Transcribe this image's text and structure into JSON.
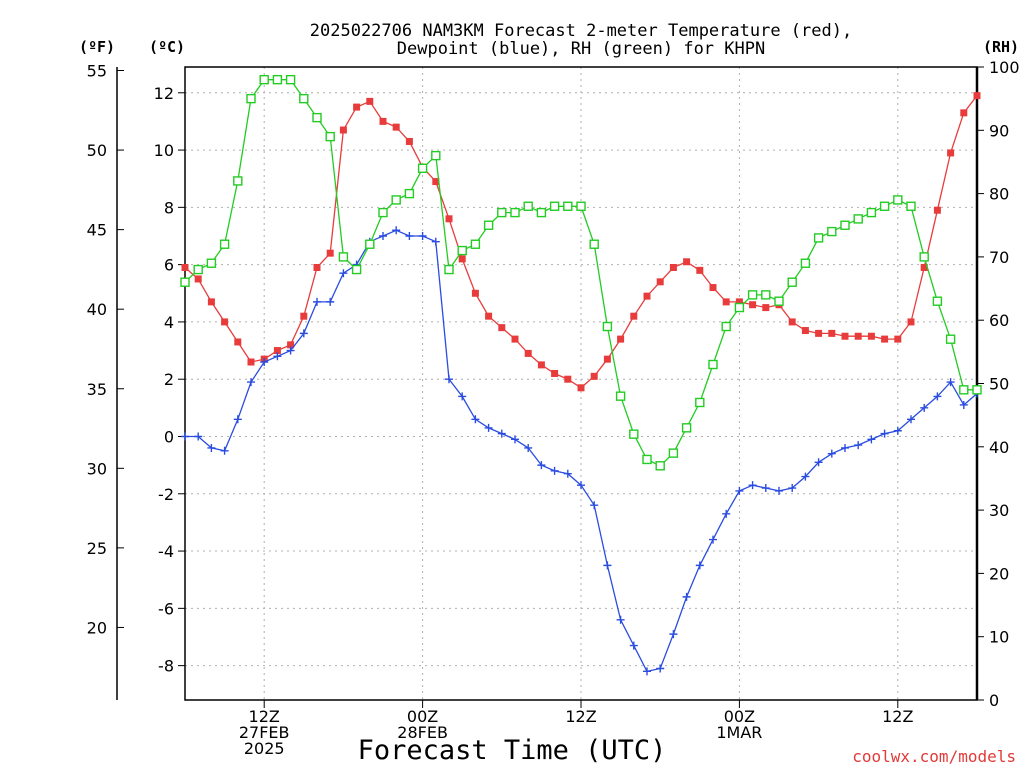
{
  "chart_data": {
    "type": "line",
    "title_lines": [
      "2025022706 NAM3KM Forecast 2-meter Temperature (red),",
      "Dewpoint (blue), RH (green) for KHPN"
    ],
    "xlabel": "Forecast Time (UTC)",
    "credit": "coolwx.com/models",
    "units": {
      "f": "(ºF)",
      "c": "(ºC)",
      "rh": "(RH)"
    },
    "x_start": "2025-02-27 06Z",
    "x_step_hours": 1,
    "x_range_hours": [
      0,
      60
    ],
    "x_ticks": [
      {
        "h": 6,
        "lines": [
          "12Z",
          "27FEB",
          "2025"
        ]
      },
      {
        "h": 18,
        "lines": [
          "00Z",
          "28FEB"
        ]
      },
      {
        "h": 30,
        "lines": [
          "12Z"
        ]
      },
      {
        "h": 42,
        "lines": [
          "00Z",
          "1MAR"
        ]
      },
      {
        "h": 54,
        "lines": [
          "12Z"
        ]
      }
    ],
    "ylim_c": [
      -9.2,
      12.9
    ],
    "ylim_rh": [
      0,
      100
    ],
    "y_ticks_c": [
      -8,
      -6,
      -4,
      -2,
      0,
      2,
      4,
      6,
      8,
      10,
      12
    ],
    "y_ticks_f": [
      20,
      25,
      30,
      35,
      40,
      45,
      50,
      55
    ],
    "y_ticks_rh": [
      0,
      10,
      20,
      30,
      40,
      50,
      60,
      70,
      80,
      90,
      100
    ],
    "grid": true,
    "series": [
      {
        "name": "2-meter Temperature",
        "axis": "c",
        "color": "#e83c3c",
        "marker": "filled-square",
        "values": [
          5.9,
          5.5,
          4.7,
          4.0,
          3.3,
          2.6,
          2.7,
          3.0,
          3.2,
          4.2,
          5.9,
          6.4,
          10.7,
          11.5,
          11.7,
          11.0,
          10.8,
          10.3,
          9.4,
          8.9,
          7.6,
          6.2,
          5.0,
          4.2,
          3.8,
          3.4,
          2.9,
          2.5,
          2.2,
          2.0,
          1.7,
          2.1,
          2.7,
          3.4,
          4.2,
          4.9,
          5.4,
          5.9,
          6.1,
          5.8,
          5.2,
          4.7,
          4.7,
          4.6,
          4.5,
          4.6,
          4.0,
          3.7,
          3.6,
          3.6,
          3.5,
          3.5,
          3.5,
          3.4,
          3.4,
          4.0,
          5.9,
          7.9,
          9.9,
          11.3,
          11.9
        ]
      },
      {
        "name": "Dewpoint",
        "axis": "c",
        "color": "#2a4de0",
        "marker": "plus",
        "values": [
          0.0,
          0.0,
          -0.4,
          -0.5,
          0.6,
          1.9,
          2.6,
          2.8,
          3.0,
          3.6,
          4.7,
          4.7,
          5.7,
          6.0,
          6.8,
          7.0,
          7.2,
          7.0,
          7.0,
          6.8,
          2.0,
          1.4,
          0.6,
          0.3,
          0.1,
          -0.1,
          -0.4,
          -1.0,
          -1.2,
          -1.3,
          -1.7,
          -2.4,
          -4.5,
          -6.4,
          -7.3,
          -8.2,
          -8.1,
          -6.9,
          -5.6,
          -4.5,
          -3.6,
          -2.7,
          -1.9,
          -1.7,
          -1.8,
          -1.9,
          -1.8,
          -1.4,
          -0.9,
          -0.6,
          -0.4,
          -0.3,
          -0.1,
          0.1,
          0.2,
          0.6,
          1.0,
          1.4,
          1.9,
          1.1,
          1.5
        ]
      },
      {
        "name": "RH",
        "axis": "rh",
        "color": "#22cc22",
        "marker": "open-square",
        "values": [
          66,
          68,
          69,
          72,
          82,
          95,
          98,
          98,
          98,
          95,
          92,
          89,
          70,
          68,
          72,
          77,
          79,
          80,
          84,
          86,
          68,
          71,
          72,
          75,
          77,
          77,
          78,
          77,
          78,
          78,
          78,
          72,
          59,
          48,
          42,
          38,
          37,
          39,
          43,
          47,
          53,
          59,
          62,
          64,
          64,
          63,
          66,
          69,
          73,
          74,
          75,
          76,
          77,
          78,
          79,
          78,
          70,
          63,
          57,
          49,
          49
        ]
      }
    ]
  }
}
